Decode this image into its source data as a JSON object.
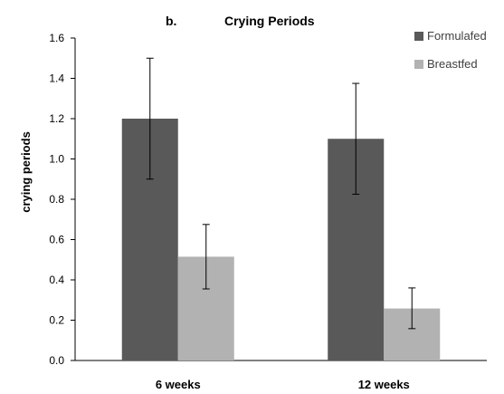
{
  "chart_data": {
    "type": "bar",
    "panel_label": "b.",
    "title": "Crying Periods",
    "xlabel": "",
    "ylabel": "crying periods",
    "categories": [
      "6 weeks",
      "12 weeks"
    ],
    "ylim": [
      0,
      1.6
    ],
    "yticks": [
      0.0,
      0.2,
      0.4,
      0.6,
      0.8,
      1.0,
      1.2,
      1.4,
      1.6
    ],
    "ytick_labels": [
      "0.0",
      "0.2",
      "0.4",
      "0.6",
      "0.8",
      "1.0",
      "1.2",
      "1.4",
      "1.6"
    ],
    "grid": false,
    "legend_position": "top-right",
    "series": [
      {
        "name": "Formulafed",
        "color": "#595959",
        "values": [
          1.2,
          1.1
        ],
        "error_upper": [
          1.5,
          1.375
        ],
        "error_lower": [
          0.9,
          0.825
        ]
      },
      {
        "name": "Breastfed",
        "color": "#b2b2b2",
        "values": [
          0.515,
          0.258
        ],
        "error_upper": [
          0.675,
          0.36
        ],
        "error_lower": [
          0.355,
          0.158
        ]
      }
    ]
  }
}
